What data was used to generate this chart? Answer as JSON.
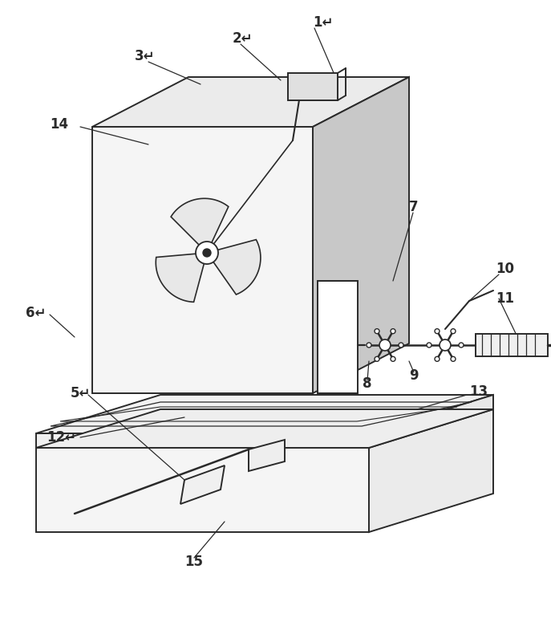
{
  "bg_color": "#ffffff",
  "line_color": "#2a2a2a",
  "gray_fill": "#c0c0c0",
  "top_fill": "#e8e8e8",
  "front_fill": "#f5f5f5",
  "figsize": [
    6.87,
    7.9
  ],
  "dpi": 100
}
